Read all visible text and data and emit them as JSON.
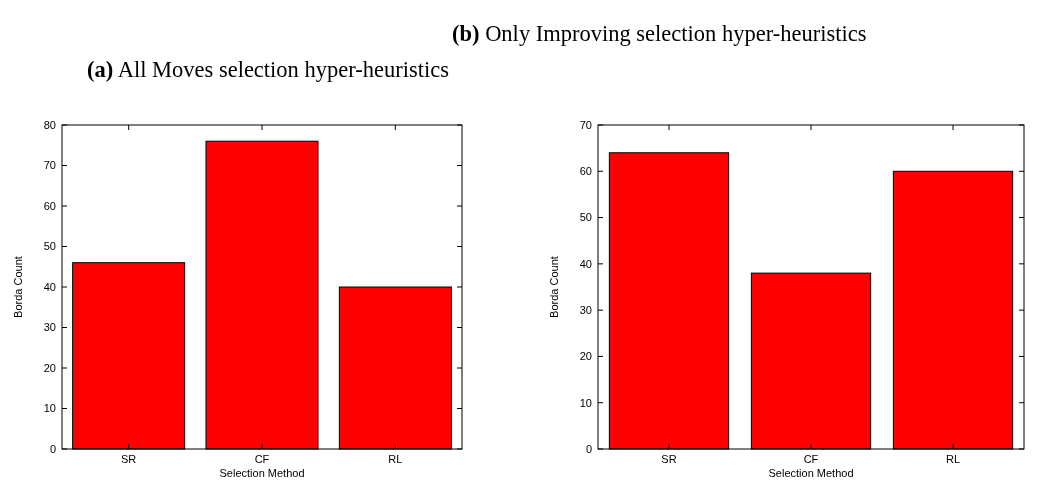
{
  "chart_data": [
    {
      "type": "bar",
      "title": "(a) All Moves selection hyper-heuristics",
      "xlabel": "Selection Method",
      "ylabel": "Borda Count",
      "categories": [
        "SR",
        "CF",
        "RL"
      ],
      "values": [
        46,
        76,
        40
      ],
      "color": "#ff0000",
      "ylim": [
        0,
        80
      ],
      "yticks": [
        0,
        10,
        20,
        30,
        40,
        50,
        60,
        70,
        80
      ]
    },
    {
      "type": "bar",
      "title": "(b) Only Improving selection hyper-heuristics",
      "xlabel": "Selection Method",
      "ylabel": "Borda Count",
      "categories": [
        "SR",
        "CF",
        "RL"
      ],
      "values": [
        64,
        38,
        60
      ],
      "color": "#ff0000",
      "ylim": [
        0,
        70
      ],
      "yticks": [
        0,
        10,
        20,
        30,
        40,
        50,
        60,
        70
      ]
    }
  ]
}
